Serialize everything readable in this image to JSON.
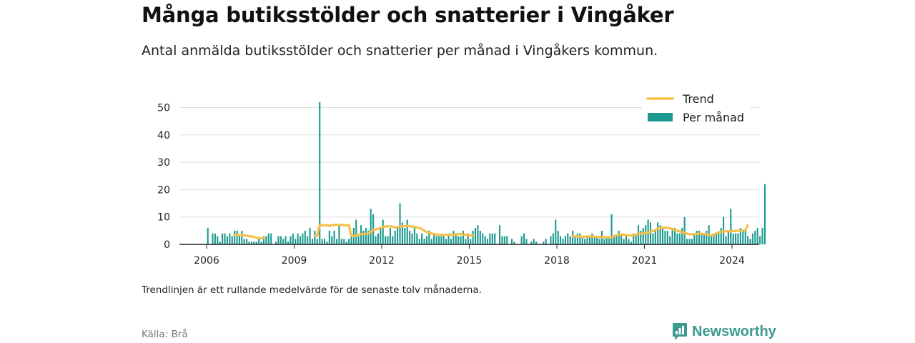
{
  "header": {
    "title": "Många butiksstölder och snatterier i Vingåker",
    "subtitle": "Antal anmälda butiksstölder och snatterier per månad i Vingåkers kommun."
  },
  "footer": {
    "note": "Trendlinjen är ett rullande medelvärde för de senaste tolv månaderna.",
    "source": "Källa: Brå",
    "brand": "Newsworthy"
  },
  "colors": {
    "bars": "#1a9a8f",
    "trend": "#f5c04a",
    "grid": "#dddddd",
    "axis": "#222222",
    "brand": "#3d9a8f"
  },
  "chart_data": {
    "type": "bar",
    "x_unit": "month",
    "x_start": "2006-01",
    "x_ticks": [
      "2006",
      "2009",
      "2012",
      "2015",
      "2018",
      "2021",
      "2024"
    ],
    "y_ticks": [
      0,
      10,
      20,
      30,
      40,
      50
    ],
    "ylim": [
      0,
      52
    ],
    "grid": true,
    "legend_position": "top-right",
    "legend": [
      {
        "label": "Trend",
        "kind": "line"
      },
      {
        "label": "Per månad",
        "kind": "bar"
      }
    ],
    "series": [
      {
        "name": "Per månad",
        "kind": "bar",
        "values": [
          6,
          0,
          4,
          4,
          3,
          1,
          4,
          4,
          3,
          4,
          3,
          5,
          5,
          3,
          5,
          2,
          2,
          1,
          1,
          1,
          1,
          2,
          1,
          3,
          3,
          4,
          4,
          0,
          1,
          3,
          3,
          2,
          3,
          1,
          3,
          4,
          2,
          4,
          3,
          4,
          5,
          3,
          6,
          2,
          5,
          2,
          52,
          2,
          2,
          1,
          5,
          3,
          5,
          2,
          7,
          2,
          2,
          1,
          2,
          3,
          6,
          9,
          3,
          7,
          5,
          6,
          5,
          13,
          11,
          3,
          4,
          6,
          9,
          3,
          3,
          6,
          3,
          5,
          6,
          15,
          8,
          6,
          9,
          5,
          4,
          6,
          4,
          2,
          4,
          2,
          3,
          5,
          2,
          4,
          3,
          3,
          3,
          3,
          2,
          4,
          2,
          5,
          4,
          3,
          3,
          5,
          2,
          4,
          2,
          5,
          6,
          7,
          5,
          4,
          3,
          2,
          4,
          4,
          4,
          0,
          7,
          3,
          3,
          3,
          0,
          2,
          1,
          0,
          0,
          3,
          4,
          2,
          0,
          1,
          2,
          1,
          0,
          0,
          1,
          2,
          0,
          3,
          4,
          9,
          5,
          3,
          2,
          3,
          4,
          3,
          5,
          3,
          4,
          4,
          3,
          2,
          3,
          3,
          4,
          3,
          3,
          2,
          5,
          2,
          3,
          3,
          11,
          3,
          3,
          5,
          4,
          2,
          3,
          2,
          1,
          4,
          4,
          7,
          5,
          6,
          7,
          9,
          8,
          4,
          5,
          8,
          7,
          6,
          5,
          5,
          3,
          6,
          6,
          4,
          4,
          6,
          10,
          2,
          2,
          2,
          4,
          5,
          5,
          4,
          4,
          5,
          7,
          3,
          4,
          4,
          4,
          6,
          10,
          3,
          5,
          13,
          4,
          4,
          4,
          6,
          5,
          5,
          3,
          2,
          4,
          5,
          6,
          3,
          6,
          22
        ]
      },
      {
        "name": "Trend",
        "kind": "line",
        "values": [
          null,
          null,
          null,
          null,
          null,
          null,
          null,
          null,
          null,
          null,
          null,
          3.5,
          3.5,
          3.4,
          3.4,
          3.3,
          3.2,
          3.0,
          2.9,
          2.7,
          2.5,
          2.3,
          2.2,
          2.3,
          null,
          null,
          null,
          null,
          null,
          null,
          null,
          null,
          null,
          null,
          null,
          null,
          null,
          null,
          null,
          null,
          null,
          null,
          null,
          null,
          3.1,
          3.2,
          7.1,
          7.0,
          7.0,
          7.0,
          6.8,
          7.0,
          7.1,
          7.2,
          7.2,
          7.1,
          7.0,
          7.0,
          7.1,
          3.1,
          3.0,
          3.4,
          3.6,
          3.7,
          3.8,
          3.9,
          4.0,
          4.5,
          5.2,
          5.5,
          5.7,
          6.0,
          6.3,
          6.5,
          6.6,
          6.6,
          6.4,
          6.2,
          6.3,
          6.5,
          6.6,
          6.7,
          6.8,
          6.6,
          6.5,
          6.4,
          6.2,
          6.0,
          5.6,
          5.0,
          4.5,
          4.2,
          4.0,
          3.8,
          3.6,
          3.5,
          3.5,
          3.5,
          3.5,
          3.5,
          3.5,
          3.4,
          3.6,
          3.8,
          3.8,
          3.6,
          3.5,
          3.4,
          3.3,
          3.2,
          null,
          null,
          null,
          null,
          null,
          null,
          null,
          null,
          null,
          null,
          null,
          null,
          null,
          null,
          null,
          null,
          null,
          null,
          null,
          null,
          null,
          null,
          null,
          null,
          null,
          null,
          null,
          null,
          null,
          null,
          null,
          null,
          null,
          null,
          null,
          null,
          null,
          null,
          null,
          null,
          3.0,
          2.9,
          2.9,
          2.8,
          2.8,
          2.8,
          2.9,
          2.9,
          2.9,
          2.8,
          2.8,
          2.7,
          2.7,
          2.7,
          2.6,
          2.5,
          2.6,
          3.0,
          3.4,
          3.6,
          3.6,
          3.5,
          3.4,
          3.3,
          3.3,
          3.4,
          3.6,
          3.8,
          3.9,
          4.0,
          4.2,
          4.4,
          4.6,
          4.9,
          5.2,
          5.7,
          6.1,
          6.2,
          6.1,
          6.0,
          5.9,
          5.6,
          5.3,
          5.0,
          4.8,
          4.4,
          4.2,
          3.9,
          3.7,
          3.6,
          3.7,
          3.8,
          3.9,
          3.9,
          3.8,
          3.7,
          3.5,
          3.3,
          3.5,
          4.0,
          4.4,
          4.6,
          4.7,
          4.8,
          4.8,
          4.8,
          4.9,
          4.9,
          5.0,
          5.0,
          5.1,
          5.3,
          7.0
        ]
      }
    ]
  }
}
